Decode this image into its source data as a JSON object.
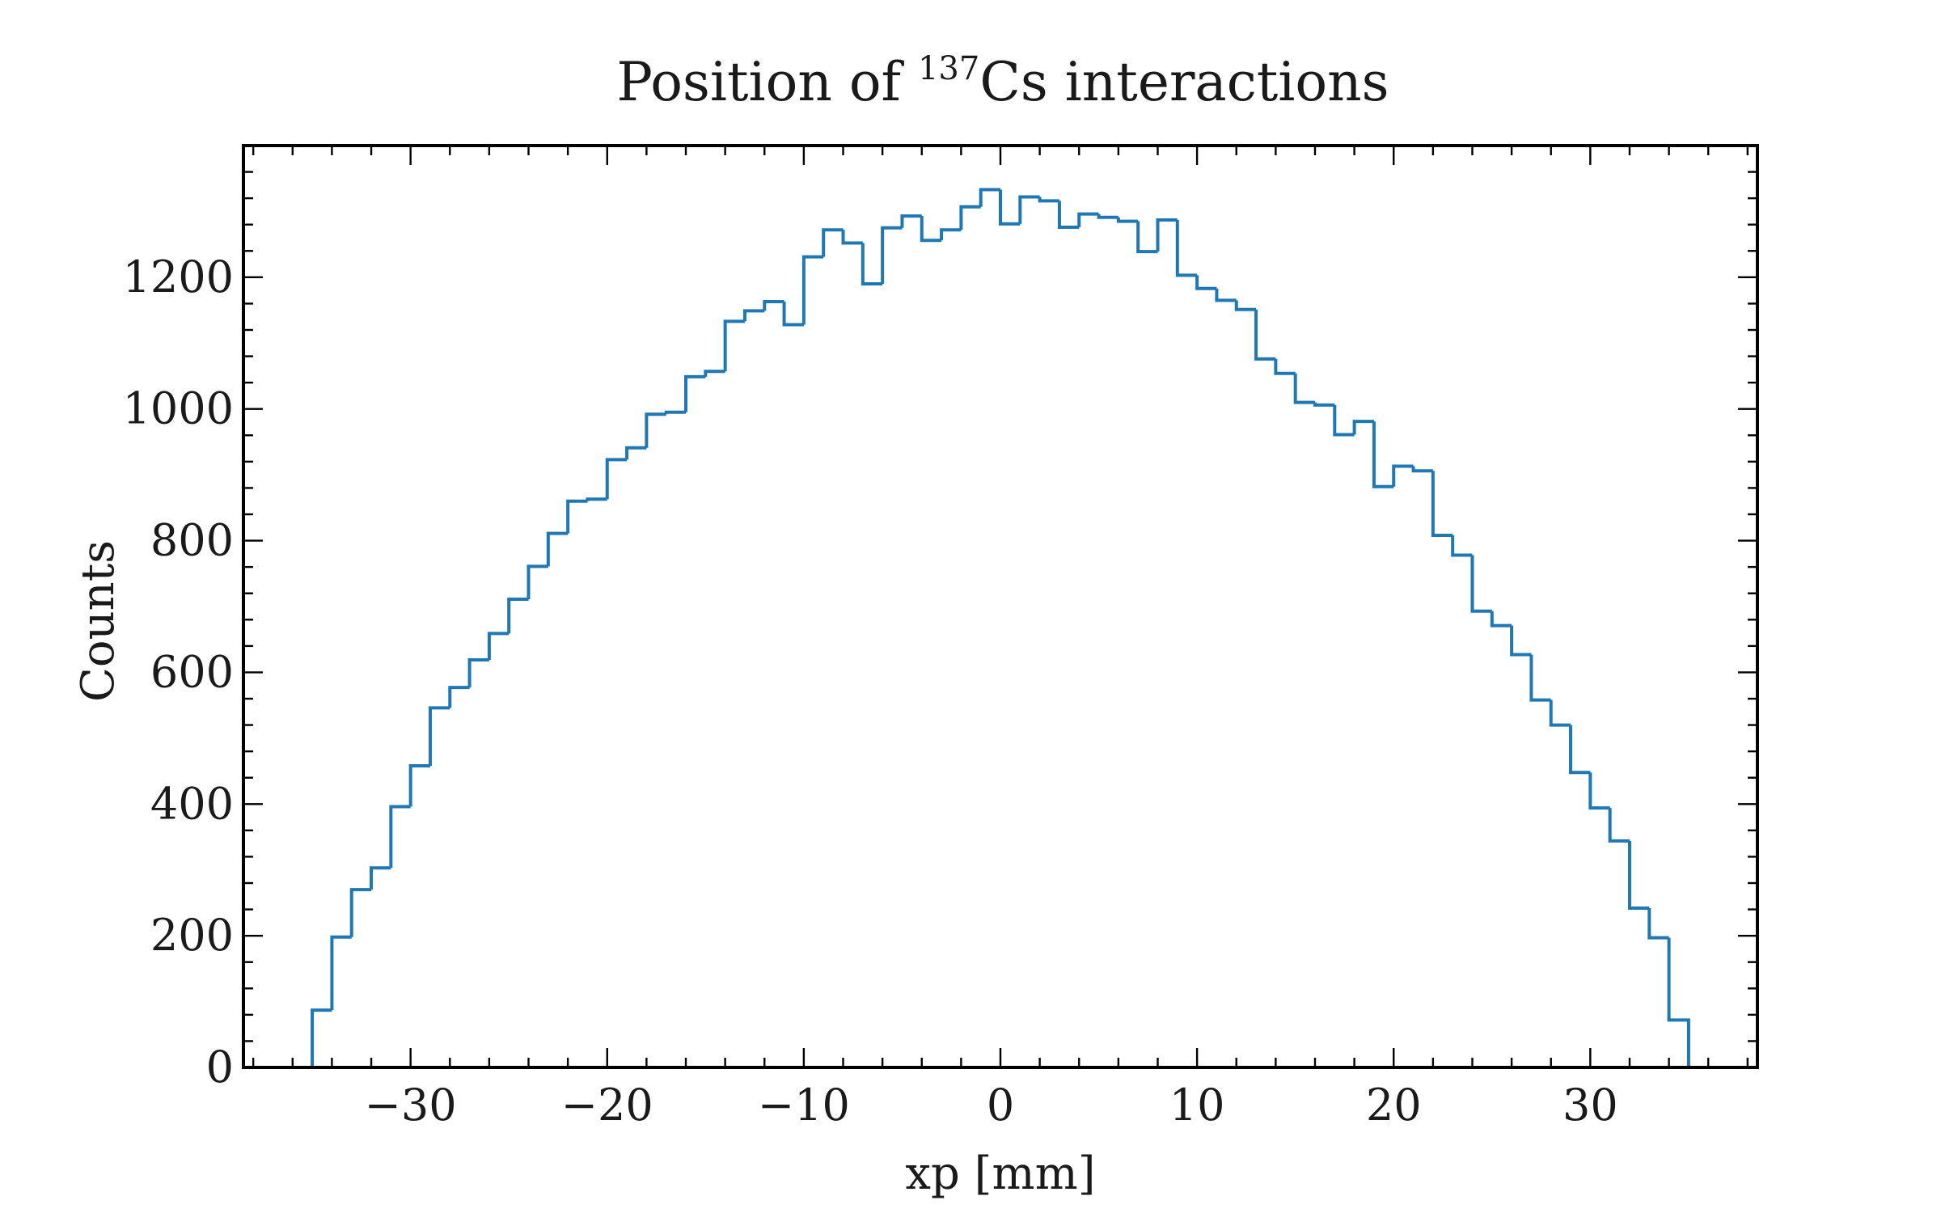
{
  "chart_data": {
    "type": "histogram",
    "title_main": "Position of ",
    "title_sup": "137",
    "title_rest": "Cs interactions",
    "xlabel": "xp [mm]",
    "ylabel": "Counts",
    "xlim": [
      -38.5,
      38.5
    ],
    "ylim": [
      0,
      1400
    ],
    "x_major_ticks": [
      -30,
      -20,
      -10,
      0,
      10,
      20,
      30
    ],
    "x_tick_labels": [
      "−30",
      "−20",
      "−10",
      "0",
      "10",
      "20",
      "30"
    ],
    "x_minor_step": 2,
    "y_major_ticks": [
      0,
      200,
      400,
      600,
      800,
      1000,
      1200
    ],
    "y_tick_labels": [
      "0",
      "200",
      "400",
      "600",
      "800",
      "1000",
      "1200"
    ],
    "y_minor_step": 40,
    "bin_start": -35,
    "bin_width": 1,
    "counts": [
      87,
      198,
      270,
      303,
      396,
      458,
      546,
      577,
      619,
      659,
      711,
      761,
      811,
      860,
      863,
      923,
      941,
      992,
      995,
      1049,
      1057,
      1133,
      1149,
      1163,
      1128,
      1231,
      1272,
      1252,
      1190,
      1275,
      1293,
      1256,
      1272,
      1307,
      1333,
      1281,
      1322,
      1316,
      1276,
      1296,
      1291,
      1285,
      1239,
      1287,
      1203,
      1183,
      1165,
      1151,
      1076,
      1054,
      1010,
      1006,
      961,
      981,
      882,
      913,
      906,
      808,
      778,
      693,
      671,
      627,
      558,
      520,
      448,
      394,
      344,
      242,
      197,
      72
    ],
    "line_color": "#1f77b4",
    "grid": false
  }
}
